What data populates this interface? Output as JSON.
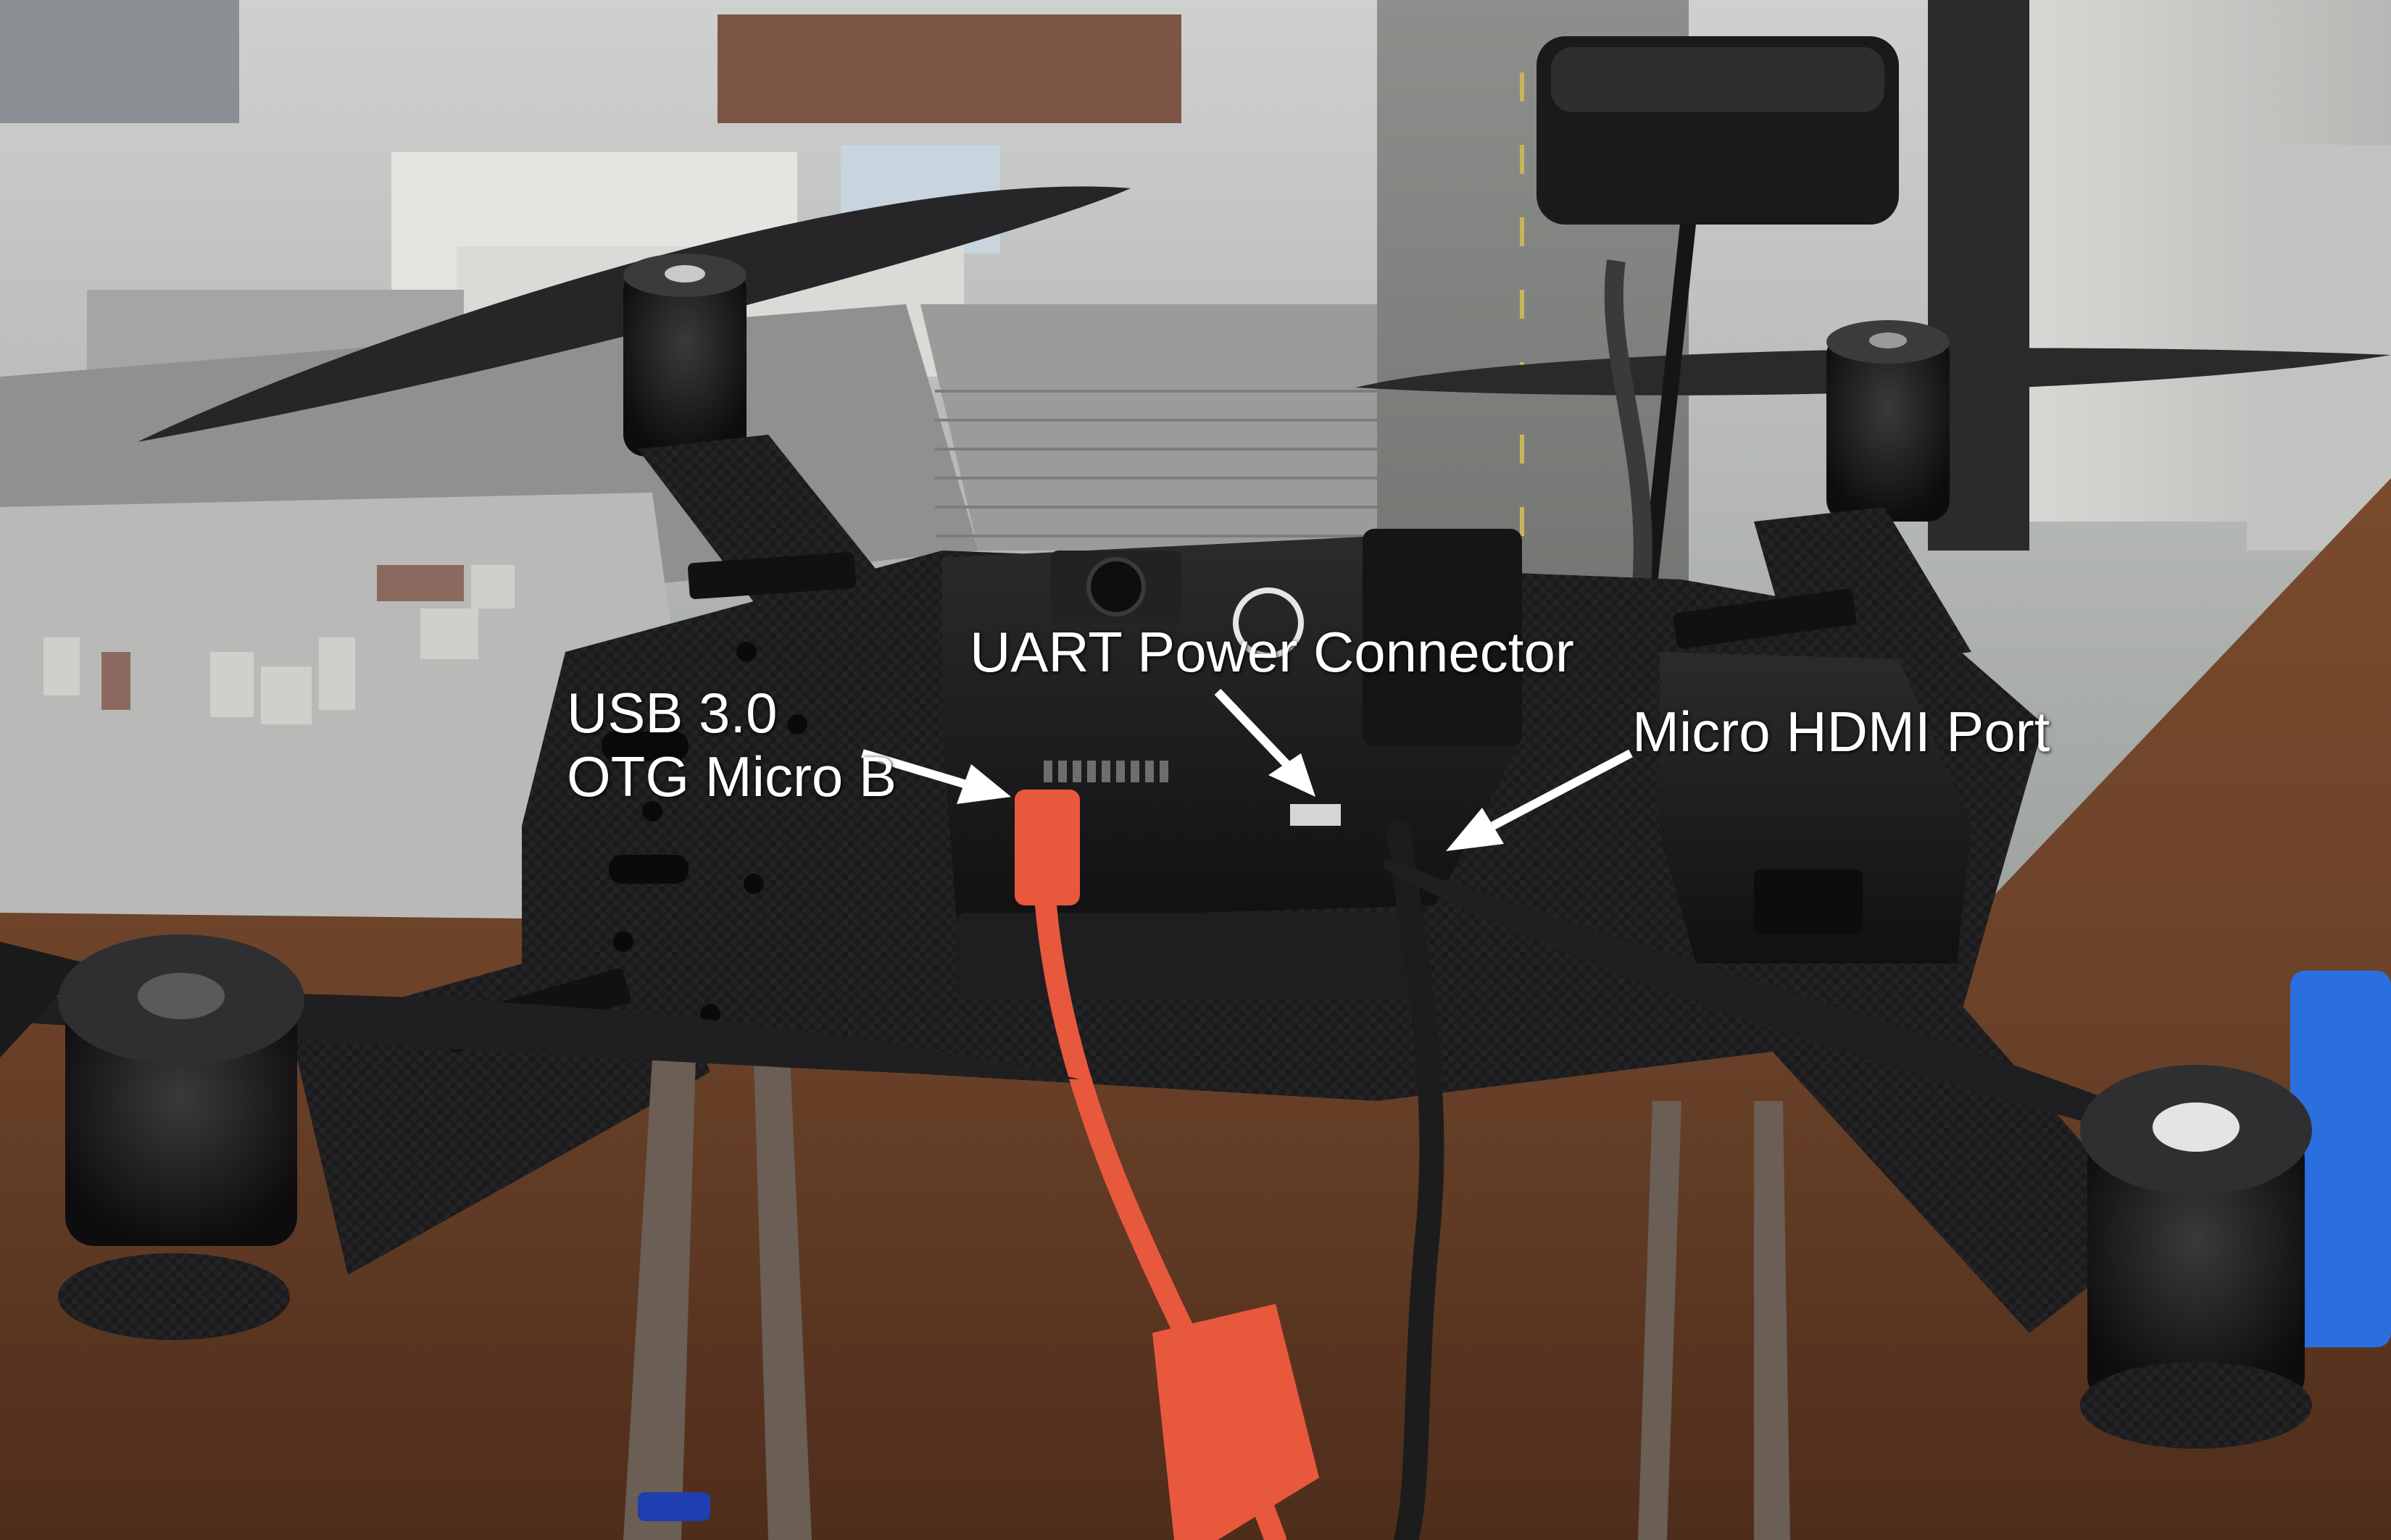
{
  "annotations": {
    "usb": {
      "line1": "USB 3.0",
      "line2": "OTG Micro B"
    },
    "uart": {
      "label": "UART Power Connector"
    },
    "hdmi": {
      "label": "Micro HDMI Port"
    }
  },
  "colors": {
    "callout_text": "#ffffff",
    "usb_cable": "#e8583d",
    "hdmi_cable": "#1c1c1c",
    "frame": "#1d1d1f",
    "desk": "#6b4229"
  }
}
